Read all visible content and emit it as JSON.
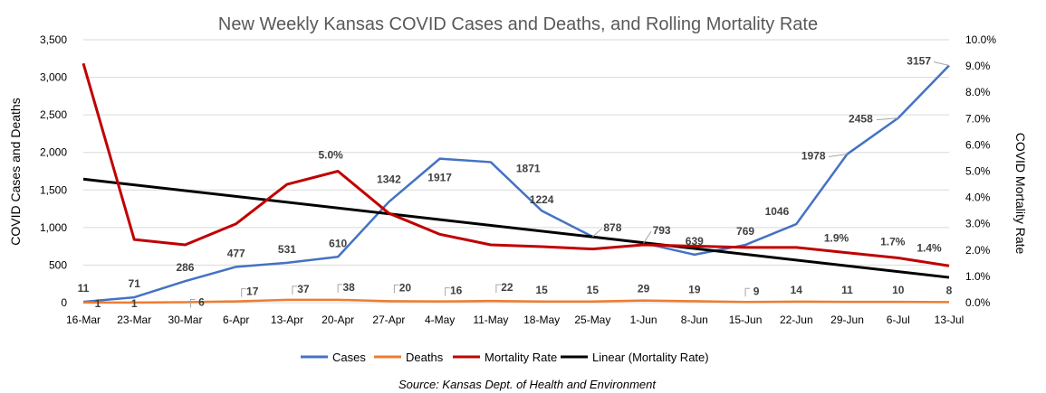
{
  "chart_data": {
    "type": "line",
    "title": "New Weekly Kansas COVID Cases and Deaths, and Rolling Mortality Rate",
    "ylabel": "COVID Cases  and Deaths",
    "y2label": "COVID Mortality Rate",
    "ylim": [
      0,
      3500
    ],
    "y2lim": [
      0,
      0.1
    ],
    "y_ticks": [
      0,
      500,
      1000,
      1500,
      2000,
      2500,
      3000,
      3500
    ],
    "y_tick_labels": [
      "0",
      "500",
      "1,000",
      "1,500",
      "2,000",
      "2,500",
      "3,000",
      "3,500"
    ],
    "y2_ticks": [
      0,
      0.01,
      0.02,
      0.03,
      0.04,
      0.05,
      0.06,
      0.07,
      0.08,
      0.09,
      0.1
    ],
    "y2_tick_labels": [
      "0.0%",
      "1.0%",
      "2.0%",
      "3.0%",
      "4.0%",
      "5.0%",
      "6.0%",
      "7.0%",
      "8.0%",
      "9.0%",
      "10.0%"
    ],
    "grid": true,
    "legend_position": "bottom",
    "categories": [
      "16-Mar",
      "23-Mar",
      "30-Mar",
      "6-Apr",
      "13-Apr",
      "20-Apr",
      "27-Apr",
      "4-May",
      "11-May",
      "18-May",
      "25-May",
      "1-Jun",
      "8-Jun",
      "15-Jun",
      "22-Jun",
      "29-Jun",
      "6-Jul",
      "13-Jul"
    ],
    "series": [
      {
        "name": "Cases",
        "axis": "left",
        "color": "#4472C4",
        "values": [
          11,
          71,
          286,
          477,
          531,
          610,
          1342,
          1917,
          1871,
          1224,
          878,
          793,
          639,
          769,
          1046,
          1978,
          2458,
          3157
        ],
        "labels": [
          "11",
          "71",
          "286",
          "477",
          "531",
          "610",
          "1342",
          "1917",
          "1871",
          "1224",
          "878",
          "793",
          "639",
          "769",
          "1046",
          "1978",
          "2458",
          "3157"
        ]
      },
      {
        "name": "Deaths",
        "axis": "left",
        "color": "#ED7D31",
        "values": [
          1,
          1,
          6,
          17,
          37,
          38,
          20,
          16,
          22,
          15,
          15,
          29,
          19,
          9,
          14,
          11,
          10,
          8
        ],
        "labels": [
          "1",
          "1",
          "6",
          "17",
          "37",
          "38",
          "20",
          "16",
          "22",
          "15",
          "15",
          "29",
          "19",
          "9",
          "14",
          "11",
          "10",
          "8"
        ]
      },
      {
        "name": "Mortality Rate",
        "axis": "right",
        "color": "#C00000",
        "values": [
          0.091,
          0.024,
          0.022,
          0.03,
          0.045,
          0.05,
          0.034,
          0.026,
          0.022,
          0.0213,
          0.0204,
          0.022,
          0.0215,
          0.021,
          0.021,
          0.019,
          0.017,
          0.014
        ],
        "labels": [
          "",
          "",
          "",
          "",
          "",
          "5.0%",
          "",
          "",
          "",
          "",
          "",
          "",
          "",
          "",
          "",
          "1.9%",
          "1.7%",
          "1.4%"
        ]
      },
      {
        "name": "Linear (Mortality Rate)",
        "axis": "right",
        "color": "#000000",
        "values": [
          0.047,
          0.0448,
          0.0426,
          0.0404,
          0.0382,
          0.036,
          0.0338,
          0.0316,
          0.0294,
          0.0272,
          0.025,
          0.0228,
          0.0206,
          0.0184,
          0.0162,
          0.014,
          0.0118,
          0.0096
        ]
      }
    ],
    "source": "Source: Kansas Dept. of Health and Environment"
  }
}
